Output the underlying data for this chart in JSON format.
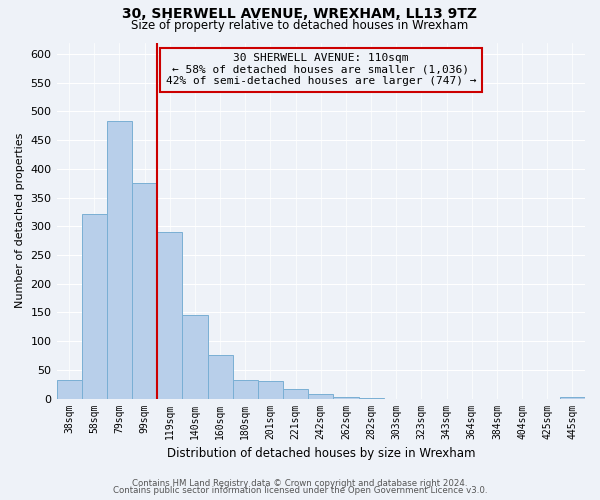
{
  "title": "30, SHERWELL AVENUE, WREXHAM, LL13 9TZ",
  "subtitle": "Size of property relative to detached houses in Wrexham",
  "xlabel": "Distribution of detached houses by size in Wrexham",
  "ylabel": "Number of detached properties",
  "bar_labels": [
    "38sqm",
    "58sqm",
    "79sqm",
    "99sqm",
    "119sqm",
    "140sqm",
    "160sqm",
    "180sqm",
    "201sqm",
    "221sqm",
    "242sqm",
    "262sqm",
    "282sqm",
    "303sqm",
    "323sqm",
    "343sqm",
    "364sqm",
    "384sqm",
    "404sqm",
    "425sqm",
    "445sqm"
  ],
  "bar_values": [
    32,
    322,
    483,
    375,
    290,
    145,
    75,
    32,
    30,
    17,
    8,
    2,
    1,
    0,
    0,
    0,
    0,
    0,
    0,
    0,
    3
  ],
  "bar_color": "#b8cfea",
  "bar_edge_color": "#7aafd4",
  "vline_x": 3.5,
  "vline_color": "#cc0000",
  "annotation_title": "30 SHERWELL AVENUE: 110sqm",
  "annotation_line1": "← 58% of detached houses are smaller (1,036)",
  "annotation_line2": "42% of semi-detached houses are larger (747) →",
  "annotation_box_edge": "#cc0000",
  "ylim": [
    0,
    620
  ],
  "yticks": [
    0,
    50,
    100,
    150,
    200,
    250,
    300,
    350,
    400,
    450,
    500,
    550,
    600
  ],
  "footer_line1": "Contains HM Land Registry data © Crown copyright and database right 2024.",
  "footer_line2": "Contains public sector information licensed under the Open Government Licence v3.0.",
  "bg_color": "#eef2f8"
}
